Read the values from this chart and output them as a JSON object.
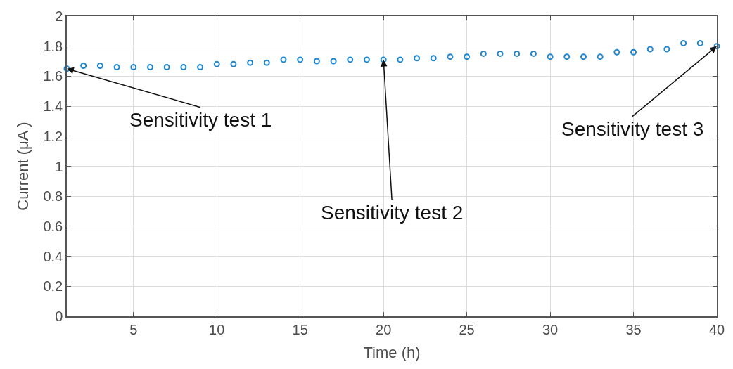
{
  "chart_data": {
    "type": "scatter",
    "xlabel": "Time (h)",
    "ylabel": "Current (μA )",
    "x": [
      1,
      2,
      3,
      4,
      5,
      6,
      7,
      8,
      9,
      10,
      11,
      12,
      13,
      14,
      15,
      16,
      17,
      18,
      19,
      20,
      21,
      22,
      23,
      24,
      25,
      26,
      27,
      28,
      29,
      30,
      31,
      32,
      33,
      34,
      35,
      36,
      37,
      38,
      39,
      40
    ],
    "series": [
      {
        "color": "#1f86d0",
        "values": [
          1.65,
          1.67,
          1.67,
          1.66,
          1.66,
          1.66,
          1.66,
          1.66,
          1.66,
          1.68,
          1.68,
          1.69,
          1.69,
          1.71,
          1.71,
          1.7,
          1.7,
          1.71,
          1.71,
          1.71,
          1.71,
          1.72,
          1.72,
          1.73,
          1.73,
          1.75,
          1.75,
          1.75,
          1.75,
          1.73,
          1.73,
          1.73,
          1.73,
          1.76,
          1.76,
          1.78,
          1.78,
          1.82,
          1.82,
          1.8
        ]
      }
    ],
    "xlim": [
      1,
      40
    ],
    "xticks": [
      5,
      10,
      15,
      20,
      25,
      30,
      35,
      40
    ],
    "ylim": [
      0,
      2
    ],
    "yticks": [
      0,
      0.2,
      0.4,
      0.6,
      0.8,
      1,
      1.2,
      1.4,
      1.6,
      1.8,
      2
    ],
    "grid": true,
    "marker": "circle",
    "annotations": [
      {
        "text": "Sensitivity test 1",
        "x": 1,
        "y": 1.65
      },
      {
        "text": "Sensitivity test 2",
        "x": 20,
        "y": 1.71
      },
      {
        "text": "Sensitivity test 3",
        "x": 40,
        "y": 1.8
      }
    ]
  }
}
